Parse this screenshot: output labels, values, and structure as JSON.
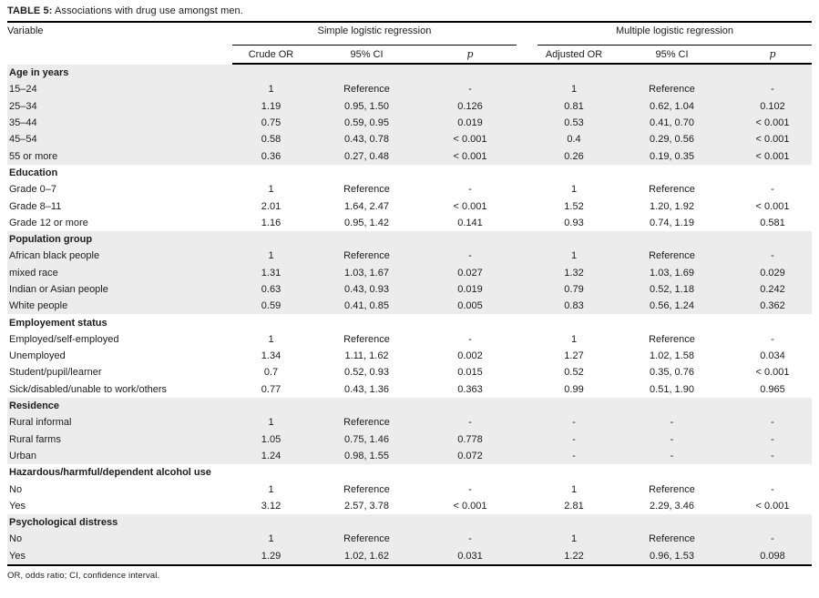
{
  "title": {
    "label": "TABLE 5:",
    "text": " Associations with drug use amongst men."
  },
  "header": {
    "variable": "Variable",
    "groups": [
      {
        "label": "Simple logistic regression",
        "cols": [
          "Crude OR",
          "95% CI",
          "p"
        ]
      },
      {
        "label": "Multiple logistic regression",
        "cols": [
          "Adjusted OR",
          "95% CI",
          "p"
        ]
      }
    ]
  },
  "sections": [
    {
      "name": "Age in years",
      "shaded": true,
      "rows": [
        {
          "label": "15–24",
          "crude_or": "1",
          "ci1": "Reference",
          "p1": "-",
          "adj_or": "1",
          "ci2": "Reference",
          "p2": "-"
        },
        {
          "label": "25–34",
          "crude_or": "1.19",
          "ci1": "0.95, 1.50",
          "p1": "0.126",
          "adj_or": "0.81",
          "ci2": "0.62, 1.04",
          "p2": "0.102"
        },
        {
          "label": "35–44",
          "crude_or": "0.75",
          "ci1": "0.59, 0.95",
          "p1": "0.019",
          "adj_or": "0.53",
          "ci2": "0.41, 0.70",
          "p2": "< 0.001"
        },
        {
          "label": "45–54",
          "crude_or": "0.58",
          "ci1": "0.43, 0.78",
          "p1": "< 0.001",
          "adj_or": "0.4",
          "ci2": "0.29, 0.56",
          "p2": "< 0.001"
        },
        {
          "label": "55 or more",
          "crude_or": "0.36",
          "ci1": "0.27, 0.48",
          "p1": "< 0.001",
          "adj_or": "0.26",
          "ci2": "0.19, 0.35",
          "p2": "< 0.001"
        }
      ]
    },
    {
      "name": "Education",
      "shaded": false,
      "rows": [
        {
          "label": "Grade 0–7",
          "crude_or": "1",
          "ci1": "Reference",
          "p1": "-",
          "adj_or": "1",
          "ci2": "Reference",
          "p2": "-"
        },
        {
          "label": "Grade 8–11",
          "crude_or": "2.01",
          "ci1": "1.64, 2.47",
          "p1": "< 0.001",
          "adj_or": "1.52",
          "ci2": "1.20, 1.92",
          "p2": "< 0.001"
        },
        {
          "label": "Grade 12 or more",
          "crude_or": "1.16",
          "ci1": "0.95, 1.42",
          "p1": "0.141",
          "adj_or": "0.93",
          "ci2": "0.74, 1.19",
          "p2": "0.581"
        }
      ]
    },
    {
      "name": "Population group",
      "shaded": true,
      "rows": [
        {
          "label": "African black people",
          "crude_or": "1",
          "ci1": "Reference",
          "p1": "-",
          "adj_or": "1",
          "ci2": "Reference",
          "p2": "-"
        },
        {
          "label": "mixed race",
          "crude_or": "1.31",
          "ci1": "1.03, 1.67",
          "p1": "0.027",
          "adj_or": "1.32",
          "ci2": "1.03, 1.69",
          "p2": "0.029"
        },
        {
          "label": "Indian or Asian people",
          "crude_or": "0.63",
          "ci1": "0.43, 0.93",
          "p1": "0.019",
          "adj_or": "0.79",
          "ci2": "0.52, 1.18",
          "p2": "0.242"
        },
        {
          "label": "White people",
          "crude_or": "0.59",
          "ci1": "0.41, 0.85",
          "p1": "0.005",
          "adj_or": "0.83",
          "ci2": "0.56, 1.24",
          "p2": "0.362"
        }
      ]
    },
    {
      "name": "Employement status",
      "shaded": false,
      "rows": [
        {
          "label": "Employed/self-employed",
          "crude_or": "1",
          "ci1": "Reference",
          "p1": "-",
          "adj_or": "1",
          "ci2": "Reference",
          "p2": "-"
        },
        {
          "label": "Unemployed",
          "crude_or": "1.34",
          "ci1": "1.11, 1.62",
          "p1": "0.002",
          "adj_or": "1.27",
          "ci2": "1.02, 1.58",
          "p2": "0.034"
        },
        {
          "label": "Student/pupil/learner",
          "crude_or": "0.7",
          "ci1": "0.52, 0.93",
          "p1": "0.015",
          "adj_or": "0.52",
          "ci2": "0.35, 0.76",
          "p2": "< 0.001"
        },
        {
          "label": "Sick/disabled/unable to work/others",
          "crude_or": "0.77",
          "ci1": "0.43, 1.36",
          "p1": "0.363",
          "adj_or": "0.99",
          "ci2": "0.51, 1.90",
          "p2": "0.965"
        }
      ]
    },
    {
      "name": "Residence",
      "shaded": true,
      "rows": [
        {
          "label": "Rural informal",
          "crude_or": "1",
          "ci1": "Reference",
          "p1": "-",
          "adj_or": "-",
          "ci2": "-",
          "p2": "-"
        },
        {
          "label": "Rural farms",
          "crude_or": "1.05",
          "ci1": "0.75, 1.46",
          "p1": "0.778",
          "adj_or": "-",
          "ci2": "-",
          "p2": "-"
        },
        {
          "label": "Urban",
          "crude_or": "1.24",
          "ci1": "0.98, 1.55",
          "p1": "0.072",
          "adj_or": "-",
          "ci2": "-",
          "p2": "-"
        }
      ]
    },
    {
      "name": "Hazardous/harmful/dependent alcohol use",
      "shaded": false,
      "rows": [
        {
          "label": "No",
          "crude_or": "1",
          "ci1": "Reference",
          "p1": "-",
          "adj_or": "1",
          "ci2": "Reference",
          "p2": "-"
        },
        {
          "label": "Yes",
          "crude_or": "3.12",
          "ci1": "2.57, 3.78",
          "p1": "< 0.001",
          "adj_or": "2.81",
          "ci2": "2.29, 3.46",
          "p2": "< 0.001"
        }
      ]
    },
    {
      "name": "Psychological distress",
      "shaded": true,
      "rows": [
        {
          "label": "No",
          "crude_or": "1",
          "ci1": "Reference",
          "p1": "-",
          "adj_or": "1",
          "ci2": "Reference",
          "p2": "-"
        },
        {
          "label": "Yes",
          "crude_or": "1.29",
          "ci1": "1.02, 1.62",
          "p1": "0.031",
          "adj_or": "1.22",
          "ci2": "0.96, 1.53",
          "p2": "0.098"
        }
      ]
    }
  ],
  "footnote": "OR, odds ratio; CI, confidence interval."
}
